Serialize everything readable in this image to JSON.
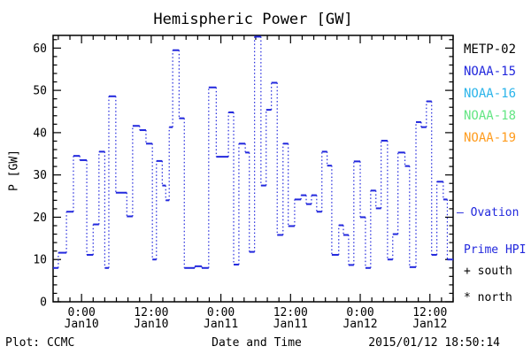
{
  "title": "Hemispheric Power [GW]",
  "ylabel": "P [GW]",
  "footer": {
    "credit": "Plot: CCMC",
    "xlabel": "Date and Time",
    "timestamp": "2015/01/12 18:50:14"
  },
  "legend": {
    "satellites": [
      {
        "label": "METP-02",
        "color": "#000000"
      },
      {
        "label": "NOAA-15",
        "color": "#2228dd"
      },
      {
        "label": "NOAA-16",
        "color": "#2ab4ea"
      },
      {
        "label": "NOAA-18",
        "color": "#63e683"
      },
      {
        "label": "NOAA-19",
        "color": "#ff9c1e"
      }
    ],
    "line_note_marker": "—",
    "line_note_line1": "Ovation",
    "line_note_line2": "Prime HPI",
    "line_note_color": "#2228dd",
    "hemisphere_markers": [
      {
        "symbol": "+",
        "label": "south"
      },
      {
        "symbol": "*",
        "label": "north"
      }
    ]
  },
  "chart_data": {
    "type": "line",
    "style": "step-stairs-dotted-risers",
    "title": "Hemispheric Power [GW]",
    "xlabel": "Date and Time",
    "ylabel": "P [GW]",
    "grid": false,
    "line_color": "#2228dd",
    "ylim": [
      0,
      63
    ],
    "y_major_tick_step": 10,
    "y_minor_tick_step": 2,
    "xlim_hours_rel_jan10_0000": [
      -4.9,
      64.0
    ],
    "x_minor_tick_step_hours": 2,
    "x_major_ticks": [
      {
        "t": 0,
        "line1": "0:00",
        "line2": "Jan10"
      },
      {
        "t": 12,
        "line1": "12:00",
        "line2": "Jan10"
      },
      {
        "t": 24,
        "line1": "0:00",
        "line2": "Jan11"
      },
      {
        "t": 36,
        "line1": "12:00",
        "line2": "Jan11"
      },
      {
        "t": 48,
        "line1": "0:00",
        "line2": "Jan12"
      },
      {
        "t": 60,
        "line1": "12:00",
        "line2": "Jan12"
      }
    ],
    "y_tick_labels": [
      "0",
      "10",
      "20",
      "30",
      "40",
      "50",
      "60"
    ],
    "series": [
      {
        "name": "Ovation Prime HPI",
        "color": "#2228dd",
        "points_t_hours_value_gw": [
          [
            -4.9,
            8.0
          ],
          [
            -4.0,
            11.6
          ],
          [
            -2.6,
            21.3
          ],
          [
            -1.4,
            34.5
          ],
          [
            -0.3,
            33.5
          ],
          [
            0.9,
            11.1
          ],
          [
            2.0,
            18.3
          ],
          [
            3.0,
            35.5
          ],
          [
            4.0,
            8.0
          ],
          [
            4.7,
            48.6
          ],
          [
            5.9,
            25.8
          ],
          [
            7.8,
            20.2
          ],
          [
            8.8,
            41.6
          ],
          [
            10.0,
            40.6
          ],
          [
            11.1,
            37.4
          ],
          [
            12.2,
            10.0
          ],
          [
            12.9,
            33.3
          ],
          [
            13.9,
            27.5
          ],
          [
            14.5,
            24.0
          ],
          [
            15.1,
            41.3
          ],
          [
            15.7,
            59.5
          ],
          [
            16.8,
            43.4
          ],
          [
            17.7,
            8.0
          ],
          [
            19.5,
            8.4
          ],
          [
            20.7,
            8.0
          ],
          [
            21.9,
            50.7
          ],
          [
            23.2,
            34.3
          ],
          [
            25.3,
            44.8
          ],
          [
            26.2,
            8.8
          ],
          [
            27.1,
            37.4
          ],
          [
            28.2,
            35.3
          ],
          [
            28.9,
            11.8
          ],
          [
            29.8,
            62.7
          ],
          [
            30.9,
            27.5
          ],
          [
            31.8,
            45.4
          ],
          [
            32.7,
            51.8
          ],
          [
            33.7,
            15.8
          ],
          [
            34.7,
            37.4
          ],
          [
            35.6,
            17.9
          ],
          [
            36.7,
            24.2
          ],
          [
            37.8,
            25.2
          ],
          [
            38.7,
            23.1
          ],
          [
            39.6,
            25.2
          ],
          [
            40.5,
            21.3
          ],
          [
            41.4,
            35.5
          ],
          [
            42.3,
            32.2
          ],
          [
            43.1,
            11.1
          ],
          [
            44.3,
            18.1
          ],
          [
            45.1,
            15.8
          ],
          [
            46.0,
            8.7
          ],
          [
            46.9,
            33.2
          ],
          [
            48.0,
            20.0
          ],
          [
            48.9,
            8.0
          ],
          [
            49.8,
            26.3
          ],
          [
            50.7,
            22.1
          ],
          [
            51.6,
            38.1
          ],
          [
            52.7,
            10.0
          ],
          [
            53.6,
            16.0
          ],
          [
            54.5,
            35.3
          ],
          [
            55.7,
            32.1
          ],
          [
            56.5,
            8.2
          ],
          [
            57.6,
            42.5
          ],
          [
            58.5,
            41.3
          ],
          [
            59.4,
            47.4
          ],
          [
            60.3,
            11.1
          ],
          [
            61.2,
            28.4
          ],
          [
            62.3,
            24.2
          ],
          [
            63.0,
            10.0
          ]
        ]
      }
    ]
  }
}
